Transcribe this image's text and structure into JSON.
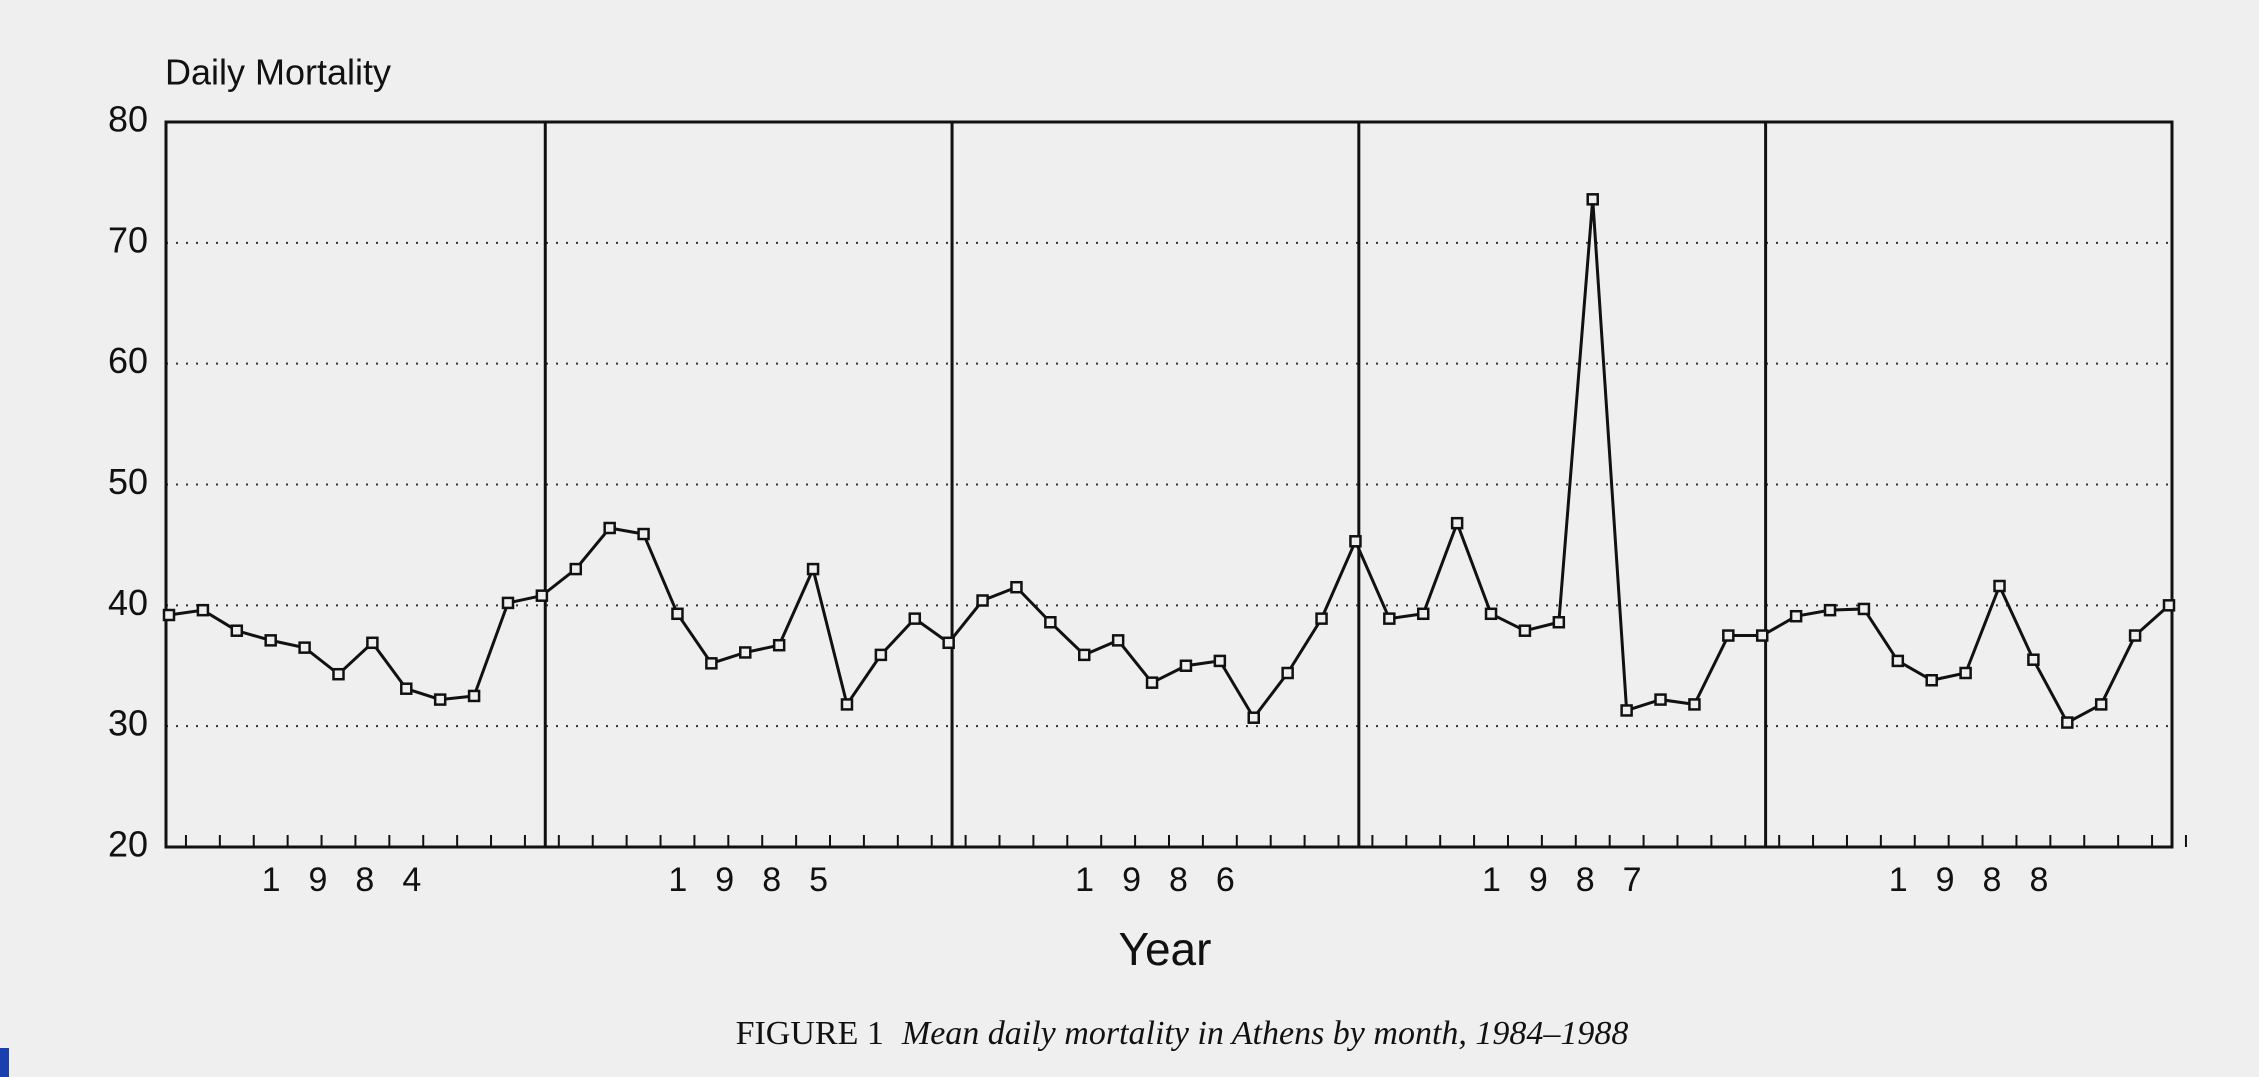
{
  "chart_data": {
    "type": "line",
    "ylabel": "Daily Mortality",
    "xlabel": "Year",
    "caption_label": "FIGURE 1",
    "caption": "Mean daily mortality in Athens by month, 1984–1988",
    "color": "#111111",
    "marker": "square",
    "ylim": [
      20,
      80
    ],
    "yticks": [
      20,
      30,
      40,
      50,
      60,
      70,
      80
    ],
    "grid": true,
    "groups": [
      {
        "label": "1984",
        "values": [
          39.2,
          39.6,
          37.9,
          37.1,
          36.5,
          34.3,
          36.9,
          33.1,
          32.2,
          32.5,
          40.2,
          40.8
        ]
      },
      {
        "label": "1985",
        "values": [
          43.0,
          46.4,
          45.9,
          39.3,
          35.2,
          36.1,
          36.7,
          43.0,
          31.8,
          35.9,
          38.9,
          36.9
        ]
      },
      {
        "label": "1986",
        "values": [
          40.4,
          41.5,
          38.6,
          35.9,
          37.1,
          33.6,
          35.0,
          35.4,
          30.7,
          34.4,
          38.9,
          45.3
        ]
      },
      {
        "label": "1987",
        "values": [
          38.9,
          39.3,
          46.8,
          39.3,
          37.9,
          38.6,
          73.6,
          31.3,
          32.2,
          31.8,
          37.5,
          37.5
        ]
      },
      {
        "label": "1988",
        "values": [
          39.1,
          39.6,
          39.7,
          35.4,
          33.8,
          34.4,
          41.6,
          35.5,
          30.3,
          31.8,
          37.5,
          40.0
        ]
      }
    ]
  }
}
